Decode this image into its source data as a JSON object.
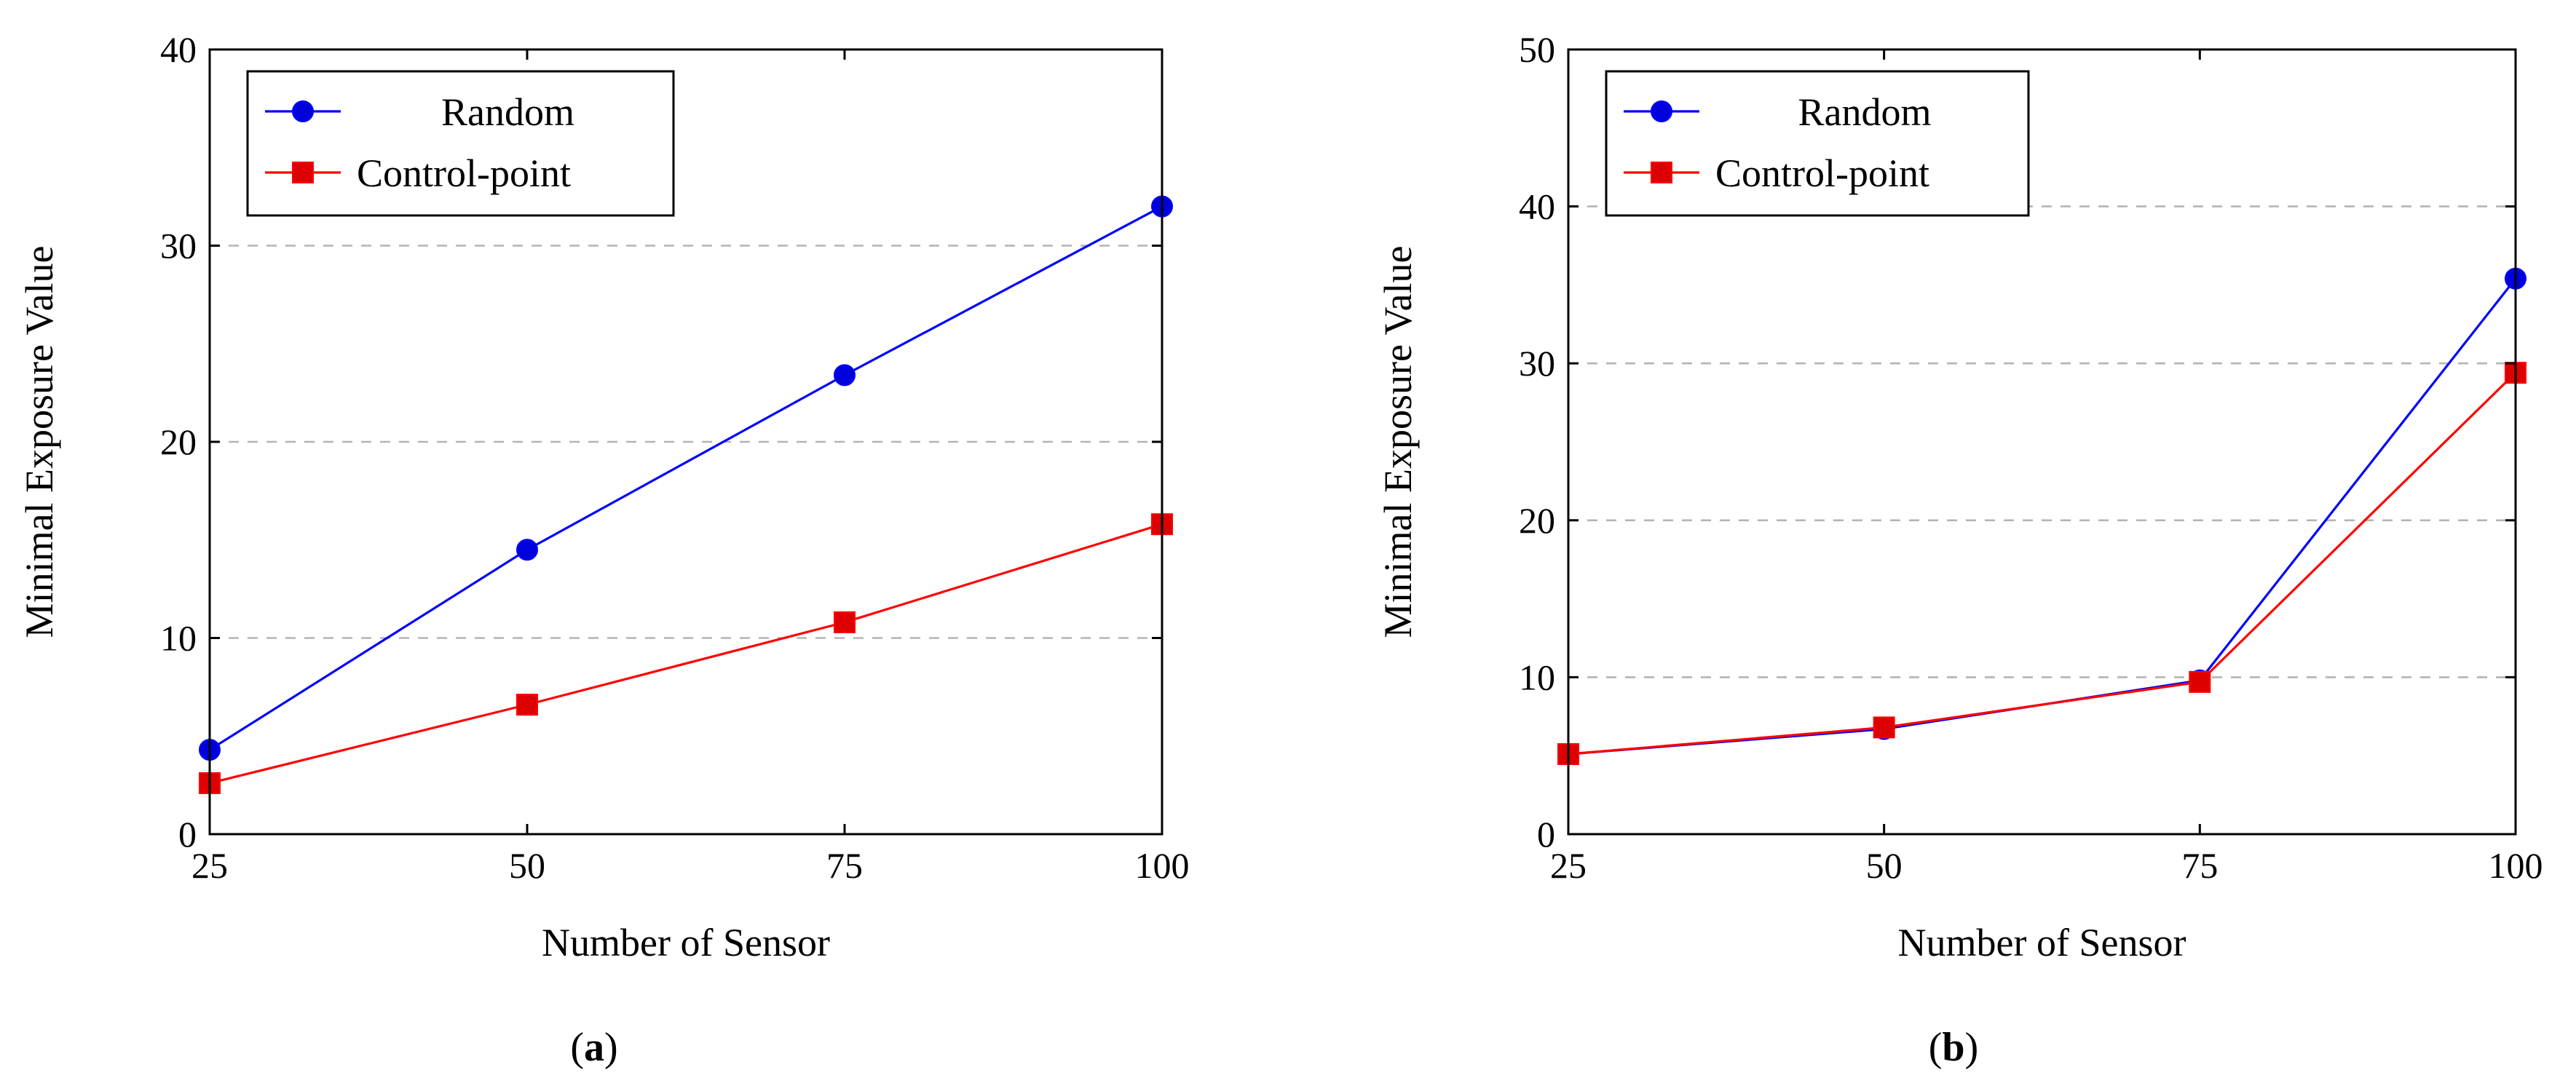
{
  "chart_data": [
    {
      "type": "line",
      "panel_caption": "a",
      "xlabel": "Number of Sensor",
      "ylabel": "Minimal Exposure Value",
      "x": [
        25,
        50,
        75,
        100
      ],
      "x_ticks": [
        25,
        50,
        75,
        100
      ],
      "xlim": [
        25,
        100
      ],
      "y_ticks": [
        0,
        10,
        20,
        30,
        40
      ],
      "ylim": [
        0,
        40
      ],
      "grid": "horizontal dashed",
      "legend_position": "top-left",
      "series": [
        {
          "name": "Random",
          "color": "#0000ff",
          "marker_color": "#0000dd",
          "marker": "circle",
          "values": [
            4.3,
            14.5,
            23.4,
            32.0
          ]
        },
        {
          "name": "Control-point",
          "color": "#ff0000",
          "marker_color": "#dd0000",
          "marker": "square",
          "values": [
            2.6,
            6.6,
            10.8,
            15.8
          ]
        }
      ]
    },
    {
      "type": "line",
      "panel_caption": "b",
      "xlabel": "Number of Sensor",
      "ylabel": "Minimal Exposure Value",
      "x": [
        25,
        50,
        75,
        100
      ],
      "x_ticks": [
        25,
        50,
        75,
        100
      ],
      "xlim": [
        25,
        100
      ],
      "y_ticks": [
        0,
        10,
        20,
        30,
        40,
        50
      ],
      "ylim": [
        0,
        50
      ],
      "grid": "horizontal dashed",
      "legend_position": "top-left",
      "series": [
        {
          "name": "Random",
          "color": "#0000ff",
          "marker_color": "#0000dd",
          "marker": "circle",
          "values": [
            5.1,
            6.7,
            9.8,
            35.4
          ]
        },
        {
          "name": "Control-point",
          "color": "#ff0000",
          "marker_color": "#dd0000",
          "marker": "square",
          "values": [
            5.1,
            6.8,
            9.7,
            29.4
          ]
        }
      ]
    }
  ]
}
